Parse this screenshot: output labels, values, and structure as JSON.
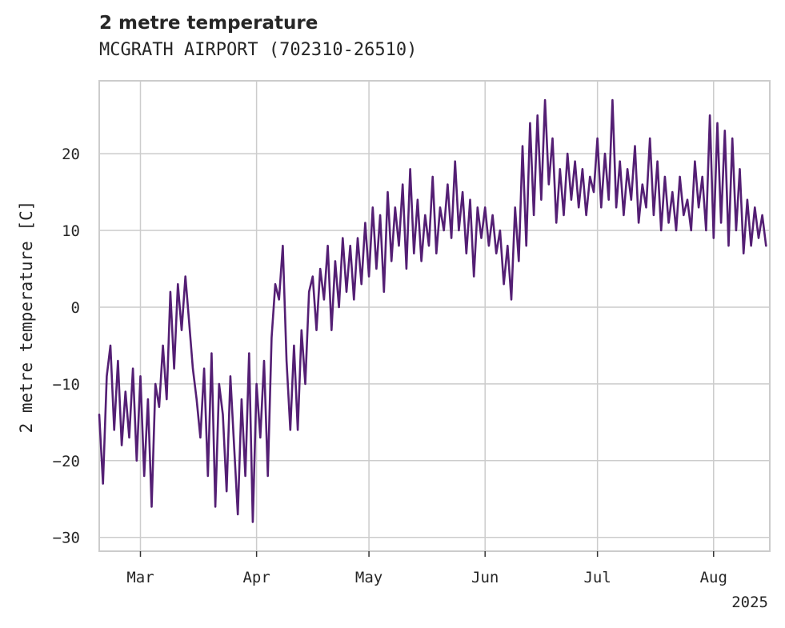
{
  "chart_data": {
    "type": "line",
    "title": "2 metre temperature",
    "subtitle": "MCGRATH AIRPORT (702310-26510)",
    "ylabel": "2 metre temperature [C]",
    "xlabel": "",
    "x_start": "2025-02-18",
    "x_end": "2025-08-16",
    "ylim": [
      -31.8,
      29.5
    ],
    "yticks": [
      -30,
      -20,
      -10,
      0,
      10,
      20
    ],
    "ytick_labels": [
      "−30",
      "−20",
      "−10",
      "0",
      "10",
      "20"
    ],
    "xticks": [
      "2025-03-01",
      "2025-04-01",
      "2025-05-01",
      "2025-06-01",
      "2025-07-01",
      "2025-08-01"
    ],
    "xtick_labels": [
      "Mar",
      "Apr",
      "May",
      "Jun",
      "Jul",
      "Aug"
    ],
    "year_label": "2025",
    "grid": true,
    "legend": "none",
    "series": [
      {
        "color": "#541f74",
        "points": [
          [
            "2025-02-18",
            -14
          ],
          [
            "2025-02-19",
            -23
          ],
          [
            "2025-02-20",
            -9
          ],
          [
            "2025-02-21",
            -5
          ],
          [
            "2025-02-22",
            -16
          ],
          [
            "2025-02-23",
            -7
          ],
          [
            "2025-02-24",
            -18
          ],
          [
            "2025-02-25",
            -11
          ],
          [
            "2025-02-26",
            -17
          ],
          [
            "2025-02-27",
            -8
          ],
          [
            "2025-02-28",
            -20
          ],
          [
            "2025-03-01",
            -9
          ],
          [
            "2025-03-02",
            -22
          ],
          [
            "2025-03-03",
            -12
          ],
          [
            "2025-03-04",
            -26
          ],
          [
            "2025-03-05",
            -10
          ],
          [
            "2025-03-06",
            -13
          ],
          [
            "2025-03-07",
            -5
          ],
          [
            "2025-03-08",
            -12
          ],
          [
            "2025-03-09",
            2
          ],
          [
            "2025-03-10",
            -8
          ],
          [
            "2025-03-11",
            3
          ],
          [
            "2025-03-12",
            -3
          ],
          [
            "2025-03-13",
            4
          ],
          [
            "2025-03-14",
            -2
          ],
          [
            "2025-03-15",
            -8
          ],
          [
            "2025-03-16",
            -12
          ],
          [
            "2025-03-17",
            -17
          ],
          [
            "2025-03-18",
            -8
          ],
          [
            "2025-03-19",
            -22
          ],
          [
            "2025-03-20",
            -6
          ],
          [
            "2025-03-21",
            -26
          ],
          [
            "2025-03-22",
            -10
          ],
          [
            "2025-03-23",
            -14
          ],
          [
            "2025-03-24",
            -24
          ],
          [
            "2025-03-25",
            -9
          ],
          [
            "2025-03-26",
            -18
          ],
          [
            "2025-03-27",
            -27
          ],
          [
            "2025-03-28",
            -12
          ],
          [
            "2025-03-29",
            -22
          ],
          [
            "2025-03-30",
            -6
          ],
          [
            "2025-03-31",
            -28
          ],
          [
            "2025-04-01",
            -10
          ],
          [
            "2025-04-02",
            -17
          ],
          [
            "2025-04-03",
            -7
          ],
          [
            "2025-04-04",
            -22
          ],
          [
            "2025-04-05",
            -4
          ],
          [
            "2025-04-06",
            3
          ],
          [
            "2025-04-07",
            1
          ],
          [
            "2025-04-08",
            8
          ],
          [
            "2025-04-09",
            -7
          ],
          [
            "2025-04-10",
            -16
          ],
          [
            "2025-04-11",
            -5
          ],
          [
            "2025-04-12",
            -16
          ],
          [
            "2025-04-13",
            -3
          ],
          [
            "2025-04-14",
            -10
          ],
          [
            "2025-04-15",
            2
          ],
          [
            "2025-04-16",
            4
          ],
          [
            "2025-04-17",
            -3
          ],
          [
            "2025-04-18",
            5
          ],
          [
            "2025-04-19",
            1
          ],
          [
            "2025-04-20",
            8
          ],
          [
            "2025-04-21",
            -3
          ],
          [
            "2025-04-22",
            6
          ],
          [
            "2025-04-23",
            0
          ],
          [
            "2025-04-24",
            9
          ],
          [
            "2025-04-25",
            2
          ],
          [
            "2025-04-26",
            8
          ],
          [
            "2025-04-27",
            1
          ],
          [
            "2025-04-28",
            9
          ],
          [
            "2025-04-29",
            3
          ],
          [
            "2025-04-30",
            11
          ],
          [
            "2025-05-01",
            4
          ],
          [
            "2025-05-02",
            13
          ],
          [
            "2025-05-03",
            5
          ],
          [
            "2025-05-04",
            12
          ],
          [
            "2025-05-05",
            2
          ],
          [
            "2025-05-06",
            15
          ],
          [
            "2025-05-07",
            6
          ],
          [
            "2025-05-08",
            13
          ],
          [
            "2025-05-09",
            8
          ],
          [
            "2025-05-10",
            16
          ],
          [
            "2025-05-11",
            5
          ],
          [
            "2025-05-12",
            18
          ],
          [
            "2025-05-13",
            7
          ],
          [
            "2025-05-14",
            14
          ],
          [
            "2025-05-15",
            6
          ],
          [
            "2025-05-16",
            12
          ],
          [
            "2025-05-17",
            8
          ],
          [
            "2025-05-18",
            17
          ],
          [
            "2025-05-19",
            7
          ],
          [
            "2025-05-20",
            13
          ],
          [
            "2025-05-21",
            10
          ],
          [
            "2025-05-22",
            16
          ],
          [
            "2025-05-23",
            9
          ],
          [
            "2025-05-24",
            19
          ],
          [
            "2025-05-25",
            10
          ],
          [
            "2025-05-26",
            15
          ],
          [
            "2025-05-27",
            7
          ],
          [
            "2025-05-28",
            14
          ],
          [
            "2025-05-29",
            4
          ],
          [
            "2025-05-30",
            13
          ],
          [
            "2025-05-31",
            9
          ],
          [
            "2025-06-01",
            13
          ],
          [
            "2025-06-02",
            8
          ],
          [
            "2025-06-03",
            12
          ],
          [
            "2025-06-04",
            7
          ],
          [
            "2025-06-05",
            10
          ],
          [
            "2025-06-06",
            3
          ],
          [
            "2025-06-07",
            8
          ],
          [
            "2025-06-08",
            1
          ],
          [
            "2025-06-09",
            13
          ],
          [
            "2025-06-10",
            6
          ],
          [
            "2025-06-11",
            21
          ],
          [
            "2025-06-12",
            8
          ],
          [
            "2025-06-13",
            24
          ],
          [
            "2025-06-14",
            12
          ],
          [
            "2025-06-15",
            25
          ],
          [
            "2025-06-16",
            14
          ],
          [
            "2025-06-17",
            27
          ],
          [
            "2025-06-18",
            16
          ],
          [
            "2025-06-19",
            22
          ],
          [
            "2025-06-20",
            11
          ],
          [
            "2025-06-21",
            18
          ],
          [
            "2025-06-22",
            12
          ],
          [
            "2025-06-23",
            20
          ],
          [
            "2025-06-24",
            14
          ],
          [
            "2025-06-25",
            19
          ],
          [
            "2025-06-26",
            13
          ],
          [
            "2025-06-27",
            18
          ],
          [
            "2025-06-28",
            12
          ],
          [
            "2025-06-29",
            17
          ],
          [
            "2025-06-30",
            15
          ],
          [
            "2025-07-01",
            22
          ],
          [
            "2025-07-02",
            13
          ],
          [
            "2025-07-03",
            20
          ],
          [
            "2025-07-04",
            14
          ],
          [
            "2025-07-05",
            27
          ],
          [
            "2025-07-06",
            13
          ],
          [
            "2025-07-07",
            19
          ],
          [
            "2025-07-08",
            12
          ],
          [
            "2025-07-09",
            18
          ],
          [
            "2025-07-10",
            14
          ],
          [
            "2025-07-11",
            21
          ],
          [
            "2025-07-12",
            11
          ],
          [
            "2025-07-13",
            16
          ],
          [
            "2025-07-14",
            13
          ],
          [
            "2025-07-15",
            22
          ],
          [
            "2025-07-16",
            12
          ],
          [
            "2025-07-17",
            19
          ],
          [
            "2025-07-18",
            10
          ],
          [
            "2025-07-19",
            17
          ],
          [
            "2025-07-20",
            11
          ],
          [
            "2025-07-21",
            15
          ],
          [
            "2025-07-22",
            10
          ],
          [
            "2025-07-23",
            17
          ],
          [
            "2025-07-24",
            12
          ],
          [
            "2025-07-25",
            14
          ],
          [
            "2025-07-26",
            10
          ],
          [
            "2025-07-27",
            19
          ],
          [
            "2025-07-28",
            13
          ],
          [
            "2025-07-29",
            17
          ],
          [
            "2025-07-30",
            10
          ],
          [
            "2025-07-31",
            25
          ],
          [
            "2025-08-01",
            9
          ],
          [
            "2025-08-02",
            24
          ],
          [
            "2025-08-03",
            11
          ],
          [
            "2025-08-04",
            23
          ],
          [
            "2025-08-05",
            8
          ],
          [
            "2025-08-06",
            22
          ],
          [
            "2025-08-07",
            10
          ],
          [
            "2025-08-08",
            18
          ],
          [
            "2025-08-09",
            7
          ],
          [
            "2025-08-10",
            14
          ],
          [
            "2025-08-11",
            8
          ],
          [
            "2025-08-12",
            13
          ],
          [
            "2025-08-13",
            9
          ],
          [
            "2025-08-14",
            12
          ],
          [
            "2025-08-15",
            8
          ]
        ]
      }
    ]
  }
}
